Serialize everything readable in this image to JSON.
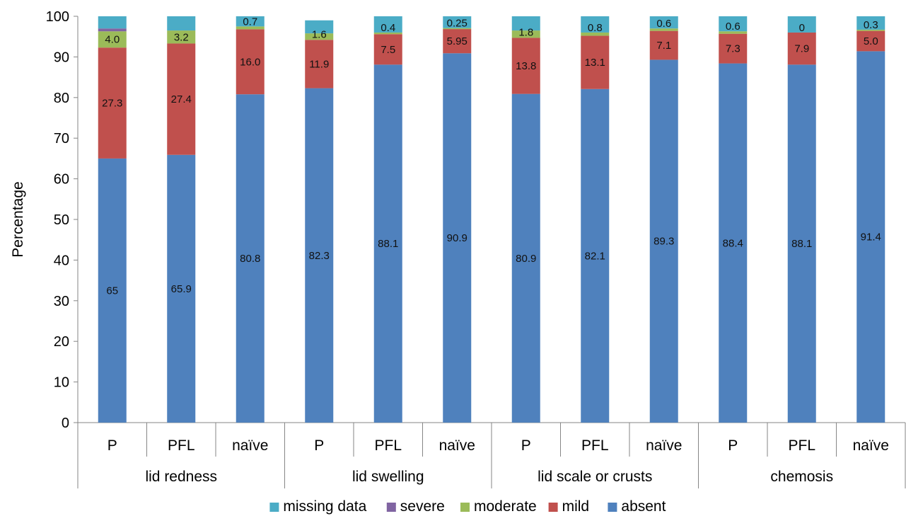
{
  "chart_data": {
    "type": "bar",
    "stacked": true,
    "ylabel": "Percentage",
    "ylim": [
      0,
      100
    ],
    "yticks": [
      "0",
      "10",
      "20",
      "30",
      "40",
      "50",
      "60",
      "70",
      "80",
      "90",
      "100"
    ],
    "groups": [
      {
        "label": "lid redness",
        "categories": [
          "P",
          "PFL",
          "naïve"
        ]
      },
      {
        "label": "lid swelling",
        "categories": [
          "P",
          "PFL",
          "naïve"
        ]
      },
      {
        "label": "lid scale or crusts",
        "categories": [
          "P",
          "PFL",
          "naïve"
        ]
      },
      {
        "label": "chemosis",
        "categories": [
          "P",
          "PFL",
          "naïve"
        ]
      }
    ],
    "series": [
      {
        "name": "absent",
        "color": "#4f81bd",
        "values": [
          65,
          65.9,
          80.8,
          82.3,
          88.1,
          90.9,
          80.9,
          82.1,
          89.3,
          88.4,
          88.1,
          91.4
        ],
        "labels": [
          "65",
          "65.9",
          "80.8",
          "82.3",
          "88.1",
          "90.9",
          "80.9",
          "82.1",
          "89.3",
          "88.4",
          "88.1",
          "91.4"
        ]
      },
      {
        "name": "mild",
        "color": "#c0504d",
        "values": [
          27.3,
          27.4,
          16.0,
          11.9,
          7.5,
          5.95,
          13.8,
          13.1,
          7.1,
          7.3,
          7.9,
          5.0
        ],
        "labels": [
          "27.3",
          "27.4",
          "16.0",
          "11.9",
          "7.5",
          "5.95",
          "13.8",
          "13.1",
          "7.1",
          "7.3",
          "7.9",
          "5.0"
        ]
      },
      {
        "name": "moderate",
        "color": "#9bbb59",
        "values": [
          4.0,
          3.2,
          0.7,
          1.6,
          0.4,
          0.25,
          1.8,
          0.8,
          0.6,
          0.6,
          0,
          0.3
        ],
        "labels": [
          "4.0",
          "3.2",
          "0.7",
          "1.6",
          "0.4",
          "0.25",
          "1.8",
          "0.8",
          "0.6",
          "0.6",
          "0",
          "0.3"
        ]
      },
      {
        "name": "severe",
        "color": "#8064a2",
        "values": [
          0.7,
          0,
          0,
          0,
          0,
          0,
          0,
          0,
          0,
          0,
          0,
          0
        ],
        "labels": []
      },
      {
        "name": "missing data",
        "color": "#4bacc6",
        "values": [
          3.0,
          3.5,
          2.5,
          3.2,
          4.0,
          2.9,
          3.5,
          4.0,
          3.0,
          3.7,
          4.0,
          3.3
        ],
        "labels": []
      }
    ],
    "legend": {
      "position": "bottom",
      "order": [
        "missing data",
        "severe",
        "moderate",
        "mild",
        "absent"
      ]
    },
    "grid": false
  }
}
